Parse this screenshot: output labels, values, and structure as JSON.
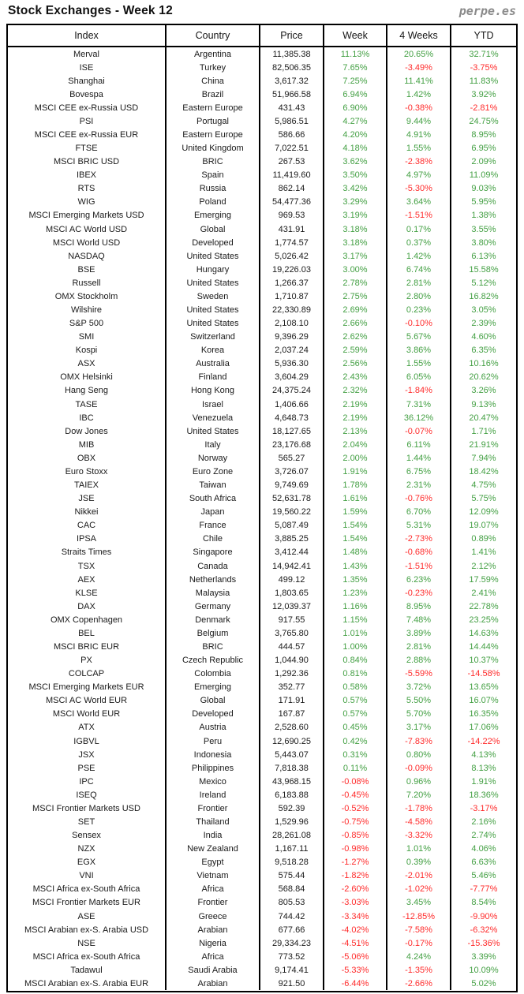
{
  "page": {
    "title": "Stock Exchanges - Week 12",
    "logo": "perpe.es"
  },
  "colors": {
    "positive": "#44a044",
    "negative": "#ff2b2b",
    "border": "#000000",
    "logo_gray": "#8a8a8a"
  },
  "chart_data": {
    "type": "table",
    "title": "Stock Exchanges - Week 12",
    "columns": [
      "Index",
      "Country",
      "Price",
      "Week",
      "4 Weeks",
      "YTD"
    ],
    "rows": [
      [
        "Merval",
        "Argentina",
        "11,385.38",
        "11.13%",
        "20.65%",
        "32.71%"
      ],
      [
        "ISE",
        "Turkey",
        "82,506.35",
        "7.65%",
        "-3.49%",
        "-3.75%"
      ],
      [
        "Shanghai",
        "China",
        "3,617.32",
        "7.25%",
        "11.41%",
        "11.83%"
      ],
      [
        "Bovespa",
        "Brazil",
        "51,966.58",
        "6.94%",
        "1.42%",
        "3.92%"
      ],
      [
        "MSCI CEE ex-Russia USD",
        "Eastern Europe",
        "431.43",
        "6.90%",
        "-0.38%",
        "-2.81%"
      ],
      [
        "PSI",
        "Portugal",
        "5,986.51",
        "4.27%",
        "9.44%",
        "24.75%"
      ],
      [
        "MSCI CEE ex-Russia EUR",
        "Eastern Europe",
        "586.66",
        "4.20%",
        "4.91%",
        "8.95%"
      ],
      [
        "FTSE",
        "United Kingdom",
        "7,022.51",
        "4.18%",
        "1.55%",
        "6.95%"
      ],
      [
        "MSCI BRIC USD",
        "BRIC",
        "267.53",
        "3.62%",
        "-2.38%",
        "2.09%"
      ],
      [
        "IBEX",
        "Spain",
        "11,419.60",
        "3.50%",
        "4.97%",
        "11.09%"
      ],
      [
        "RTS",
        "Russia",
        "862.14",
        "3.42%",
        "-5.30%",
        "9.03%"
      ],
      [
        "WIG",
        "Poland",
        "54,477.36",
        "3.29%",
        "3.64%",
        "5.95%"
      ],
      [
        "MSCI Emerging Markets USD",
        "Emerging",
        "969.53",
        "3.19%",
        "-1.51%",
        "1.38%"
      ],
      [
        "MSCI AC World USD",
        "Global",
        "431.91",
        "3.18%",
        "0.17%",
        "3.55%"
      ],
      [
        "MSCI World USD",
        "Developed",
        "1,774.57",
        "3.18%",
        "0.37%",
        "3.80%"
      ],
      [
        "NASDAQ",
        "United States",
        "5,026.42",
        "3.17%",
        "1.42%",
        "6.13%"
      ],
      [
        "BSE",
        "Hungary",
        "19,226.03",
        "3.00%",
        "6.74%",
        "15.58%"
      ],
      [
        "Russell",
        "United States",
        "1,266.37",
        "2.78%",
        "2.81%",
        "5.12%"
      ],
      [
        "OMX Stockholm",
        "Sweden",
        "1,710.87",
        "2.75%",
        "2.80%",
        "16.82%"
      ],
      [
        "Wilshire",
        "United States",
        "22,330.89",
        "2.69%",
        "0.23%",
        "3.05%"
      ],
      [
        "S&P 500",
        "United States",
        "2,108.10",
        "2.66%",
        "-0.10%",
        "2.39%"
      ],
      [
        "SMI",
        "Switzerland",
        "9,396.29",
        "2.62%",
        "5.67%",
        "4.60%"
      ],
      [
        "Kospi",
        "Korea",
        "2,037.24",
        "2.59%",
        "3.86%",
        "6.35%"
      ],
      [
        "ASX",
        "Australia",
        "5,936.30",
        "2.56%",
        "1.55%",
        "10.16%"
      ],
      [
        "OMX Helsinki",
        "Finland",
        "3,604.29",
        "2.43%",
        "6.05%",
        "20.62%"
      ],
      [
        "Hang Seng",
        "Hong Kong",
        "24,375.24",
        "2.32%",
        "-1.84%",
        "3.26%"
      ],
      [
        "TASE",
        "Israel",
        "1,406.66",
        "2.19%",
        "7.31%",
        "9.13%"
      ],
      [
        "IBC",
        "Venezuela",
        "4,648.73",
        "2.19%",
        "36.12%",
        "20.47%"
      ],
      [
        "Dow Jones",
        "United States",
        "18,127.65",
        "2.13%",
        "-0.07%",
        "1.71%"
      ],
      [
        "MIB",
        "Italy",
        "23,176.68",
        "2.04%",
        "6.11%",
        "21.91%"
      ],
      [
        "OBX",
        "Norway",
        "565.27",
        "2.00%",
        "1.44%",
        "7.94%"
      ],
      [
        "Euro Stoxx",
        "Euro Zone",
        "3,726.07",
        "1.91%",
        "6.75%",
        "18.42%"
      ],
      [
        "TAIEX",
        "Taiwan",
        "9,749.69",
        "1.78%",
        "2.31%",
        "4.75%"
      ],
      [
        "JSE",
        "South Africa",
        "52,631.78",
        "1.61%",
        "-0.76%",
        "5.75%"
      ],
      [
        "Nikkei",
        "Japan",
        "19,560.22",
        "1.59%",
        "6.70%",
        "12.09%"
      ],
      [
        "CAC",
        "France",
        "5,087.49",
        "1.54%",
        "5.31%",
        "19.07%"
      ],
      [
        "IPSA",
        "Chile",
        "3,885.25",
        "1.54%",
        "-2.73%",
        "0.89%"
      ],
      [
        "Straits Times",
        "Singapore",
        "3,412.44",
        "1.48%",
        "-0.68%",
        "1.41%"
      ],
      [
        "TSX",
        "Canada",
        "14,942.41",
        "1.43%",
        "-1.51%",
        "2.12%"
      ],
      [
        "AEX",
        "Netherlands",
        "499.12",
        "1.35%",
        "6.23%",
        "17.59%"
      ],
      [
        "KLSE",
        "Malaysia",
        "1,803.65",
        "1.23%",
        "-0.23%",
        "2.41%"
      ],
      [
        "DAX",
        "Germany",
        "12,039.37",
        "1.16%",
        "8.95%",
        "22.78%"
      ],
      [
        "OMX Copenhagen",
        "Denmark",
        "917.55",
        "1.15%",
        "7.48%",
        "23.25%"
      ],
      [
        "BEL",
        "Belgium",
        "3,765.80",
        "1.01%",
        "3.89%",
        "14.63%"
      ],
      [
        "MSCI BRIC EUR",
        "BRIC",
        "444.57",
        "1.00%",
        "2.81%",
        "14.44%"
      ],
      [
        "PX",
        "Czech Republic",
        "1,044.90",
        "0.84%",
        "2.88%",
        "10.37%"
      ],
      [
        "COLCAP",
        "Colombia",
        "1,292.36",
        "0.81%",
        "-5.59%",
        "-14.58%"
      ],
      [
        "MSCI Emerging Markets EUR",
        "Emerging",
        "352.77",
        "0.58%",
        "3.72%",
        "13.65%"
      ],
      [
        "MSCI AC World EUR",
        "Global",
        "171.91",
        "0.57%",
        "5.50%",
        "16.07%"
      ],
      [
        "MSCI World EUR",
        "Developed",
        "167.87",
        "0.57%",
        "5.70%",
        "16.35%"
      ],
      [
        "ATX",
        "Austria",
        "2,528.60",
        "0.45%",
        "3.17%",
        "17.06%"
      ],
      [
        "IGBVL",
        "Peru",
        "12,690.25",
        "0.42%",
        "-7.83%",
        "-14.22%"
      ],
      [
        "JSX",
        "Indonesia",
        "5,443.07",
        "0.31%",
        "0.80%",
        "4.13%"
      ],
      [
        "PSE",
        "Philippines",
        "7,818.38",
        "0.11%",
        "-0.09%",
        "8.13%"
      ],
      [
        "IPC",
        "Mexico",
        "43,968.15",
        "-0.08%",
        "0.96%",
        "1.91%"
      ],
      [
        "ISEQ",
        "Ireland",
        "6,183.88",
        "-0.45%",
        "7.20%",
        "18.36%"
      ],
      [
        "MSCI Frontier Markets USD",
        "Frontier",
        "592.39",
        "-0.52%",
        "-1.78%",
        "-3.17%"
      ],
      [
        "SET",
        "Thailand",
        "1,529.96",
        "-0.75%",
        "-4.58%",
        "2.16%"
      ],
      [
        "Sensex",
        "India",
        "28,261.08",
        "-0.85%",
        "-3.32%",
        "2.74%"
      ],
      [
        "NZX",
        "New Zealand",
        "1,167.11",
        "-0.98%",
        "1.01%",
        "4.06%"
      ],
      [
        "EGX",
        "Egypt",
        "9,518.28",
        "-1.27%",
        "0.39%",
        "6.63%"
      ],
      [
        "VNI",
        "Vietnam",
        "575.44",
        "-1.82%",
        "-2.01%",
        "5.46%"
      ],
      [
        "MSCI Africa ex-South Africa",
        "Africa",
        "568.84",
        "-2.60%",
        "-1.02%",
        "-7.77%"
      ],
      [
        "MSCI Frontier Markets EUR",
        "Frontier",
        "805.53",
        "-3.03%",
        "3.45%",
        "8.54%"
      ],
      [
        "ASE",
        "Greece",
        "744.42",
        "-3.34%",
        "-12.85%",
        "-9.90%"
      ],
      [
        "MSCI Arabian ex-S. Arabia USD",
        "Arabian",
        "677.66",
        "-4.02%",
        "-7.58%",
        "-6.32%"
      ],
      [
        "NSE",
        "Nigeria",
        "29,334.23",
        "-4.51%",
        "-0.17%",
        "-15.36%"
      ],
      [
        "MSCI Africa ex-South Africa",
        "Africa",
        "773.52",
        "-5.06%",
        "4.24%",
        "3.39%"
      ],
      [
        "Tadawul",
        "Saudi Arabia",
        "9,174.41",
        "-5.33%",
        "-1.35%",
        "10.09%"
      ],
      [
        "MSCI Arabian ex-S. Arabia EUR",
        "Arabian",
        "921.50",
        "-6.44%",
        "-2.66%",
        "5.02%"
      ]
    ]
  }
}
